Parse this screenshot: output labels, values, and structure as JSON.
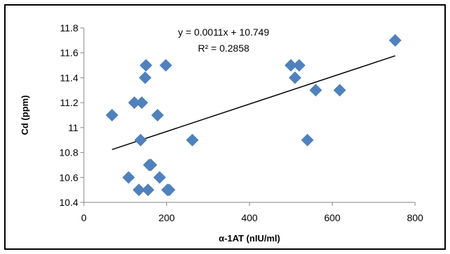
{
  "chart_data": {
    "type": "scatter",
    "title": "",
    "xlabel": "α-1AT (nIU/ml)",
    "ylabel": "Cd (ppm)",
    "xlim": [
      0,
      800
    ],
    "ylim": [
      10.4,
      11.8
    ],
    "x_ticks": [
      0,
      200,
      400,
      600,
      800
    ],
    "y_ticks": [
      "10.4",
      "10.6",
      "10.8",
      "11",
      "11.2",
      "11.4",
      "11.6",
      "11.8"
    ],
    "grid": false,
    "legend": "none",
    "marker_color": "#4F81BD",
    "series": [
      {
        "points": [
          {
            "x": 68,
            "y": 11.1
          },
          {
            "x": 108,
            "y": 10.6
          },
          {
            "x": 122,
            "y": 11.2
          },
          {
            "x": 133,
            "y": 10.5
          },
          {
            "x": 137,
            "y": 10.9
          },
          {
            "x": 140,
            "y": 11.2
          },
          {
            "x": 148,
            "y": 11.4
          },
          {
            "x": 150,
            "y": 11.5
          },
          {
            "x": 155,
            "y": 10.5
          },
          {
            "x": 158,
            "y": 10.7
          },
          {
            "x": 162,
            "y": 10.7
          },
          {
            "x": 178,
            "y": 11.1
          },
          {
            "x": 183,
            "y": 10.6
          },
          {
            "x": 198,
            "y": 11.5
          },
          {
            "x": 202,
            "y": 10.5
          },
          {
            "x": 206,
            "y": 10.5
          },
          {
            "x": 262,
            "y": 10.9
          },
          {
            "x": 500,
            "y": 11.5
          },
          {
            "x": 510,
            "y": 11.4
          },
          {
            "x": 520,
            "y": 11.5
          },
          {
            "x": 540,
            "y": 10.9
          },
          {
            "x": 560,
            "y": 11.3
          },
          {
            "x": 618,
            "y": 11.3
          },
          {
            "x": 752,
            "y": 11.7
          }
        ]
      }
    ],
    "trendline": {
      "slope": 0.0011,
      "intercept": 10.749,
      "x_range": [
        68,
        752
      ],
      "equation": "y = 0.0011x + 10.749",
      "r_squared": "R² = 0.2858"
    }
  }
}
